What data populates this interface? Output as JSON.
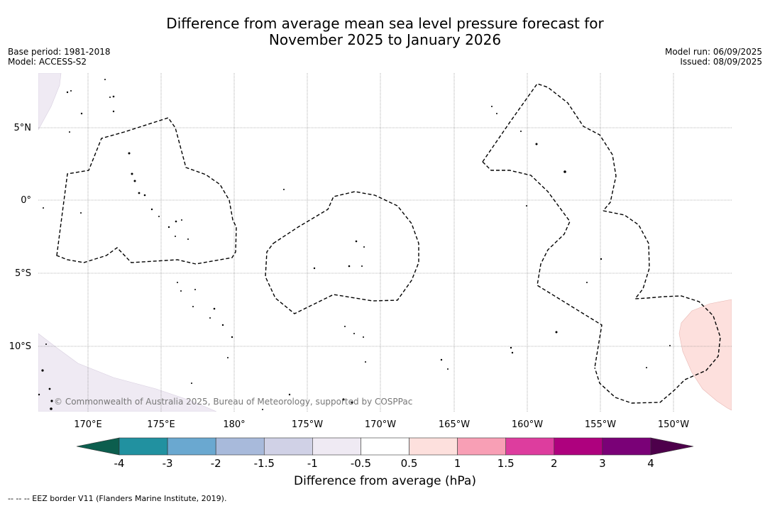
{
  "title": {
    "line1": "Difference from average mean sea level pressure forecast for",
    "line2": "November 2025 to January 2026"
  },
  "meta": {
    "base_period": "Base period: 1981-2018",
    "model": "Model: ACCESS-S2",
    "model_run": "Model run: 06/09/2025",
    "issued": "Issued: 08/09/2025"
  },
  "map": {
    "lon_labels": [
      "170°E",
      "175°E",
      "180°",
      "175°W",
      "170°W",
      "165°W",
      "160°W",
      "155°W",
      "150°W"
    ],
    "lat_labels": [
      "5°N",
      "0°",
      "5°S",
      "10°S"
    ],
    "copyright": "© Commonwealth of Australia 2025, Bureau of Meteorology, supported by COSPPac"
  },
  "colorbar": {
    "label": "Difference from average (hPa)",
    "ticks": [
      "-4",
      "-3",
      "-2",
      "-1.5",
      "-1",
      "-0.5",
      "0.5",
      "1",
      "1.5",
      "2",
      "3",
      "4"
    ],
    "colors": [
      "#137867",
      "#2191a0",
      "#6aa8d0",
      "#a8badb",
      "#d0d1e6",
      "#efeaf3",
      "#ffffff",
      "#fde0dd",
      "#f89fb5",
      "#dd3d9e",
      "#ae017e",
      "#7a0177",
      "#4d004b"
    ],
    "under_color": "#0c5e4e",
    "over_color": "#4d004b"
  },
  "footnote": "--  --  -- EEZ border V11 (Flanders Marine Institute, 2019)."
}
